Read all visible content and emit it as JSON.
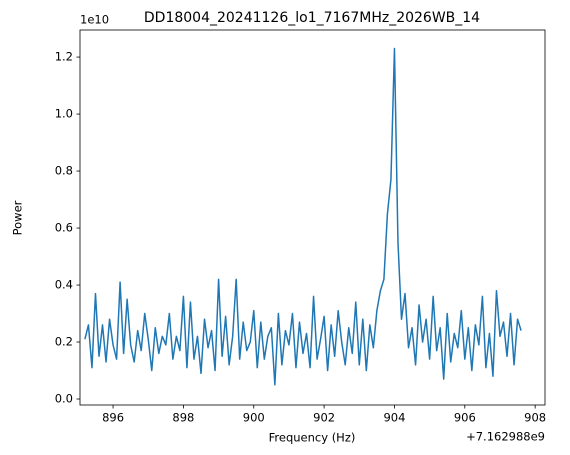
{
  "chart_data": {
    "type": "line",
    "title": "DD18004_20241126_lo1_7167MHz_2026WB_14",
    "x_label": "Frequency (Hz)",
    "y_label": "Power",
    "x_offset_label": "+7.162988e9",
    "y_offset_label": "1e10",
    "x": [
      895.2,
      895.3,
      895.4,
      895.5,
      895.6,
      895.7,
      895.8,
      895.9,
      896.0,
      896.1,
      896.2,
      896.3,
      896.4,
      896.5,
      896.6,
      896.7,
      896.8,
      896.9,
      897.0,
      897.1,
      897.2,
      897.3,
      897.4,
      897.5,
      897.6,
      897.7,
      897.8,
      897.9,
      898.0,
      898.1,
      898.2,
      898.3,
      898.4,
      898.5,
      898.6,
      898.7,
      898.8,
      898.9,
      899.0,
      899.1,
      899.2,
      899.3,
      899.4,
      899.5,
      899.6,
      899.7,
      899.8,
      899.9,
      900.0,
      900.1,
      900.2,
      900.3,
      900.4,
      900.5,
      900.6,
      900.7,
      900.8,
      900.9,
      901.0,
      901.1,
      901.2,
      901.3,
      901.4,
      901.5,
      901.6,
      901.7,
      901.8,
      901.9,
      902.0,
      902.1,
      902.2,
      902.3,
      902.4,
      902.5,
      902.6,
      902.7,
      902.8,
      902.9,
      903.0,
      903.1,
      903.2,
      903.3,
      903.4,
      903.5,
      903.6,
      903.7,
      903.8,
      903.9,
      904.0,
      904.1,
      904.2,
      904.3,
      904.4,
      904.5,
      904.6,
      904.7,
      904.8,
      904.9,
      905.0,
      905.1,
      905.2,
      905.3,
      905.4,
      905.5,
      905.6,
      905.7,
      905.8,
      905.9,
      906.0,
      906.1,
      906.2,
      906.3,
      906.4,
      906.5,
      906.6,
      906.7,
      906.8,
      906.9,
      907.0,
      907.1,
      907.2,
      907.3,
      907.4,
      907.5,
      907.6
    ],
    "series": [
      {
        "name": "Power",
        "color": "#1f77b4",
        "values": [
          0.21,
          0.26,
          0.11,
          0.37,
          0.15,
          0.26,
          0.13,
          0.28,
          0.19,
          0.14,
          0.41,
          0.16,
          0.35,
          0.19,
          0.13,
          0.24,
          0.17,
          0.3,
          0.21,
          0.1,
          0.25,
          0.16,
          0.22,
          0.19,
          0.3,
          0.14,
          0.22,
          0.17,
          0.36,
          0.11,
          0.34,
          0.14,
          0.22,
          0.09,
          0.28,
          0.18,
          0.24,
          0.1,
          0.42,
          0.15,
          0.29,
          0.12,
          0.22,
          0.42,
          0.14,
          0.27,
          0.17,
          0.2,
          0.31,
          0.11,
          0.27,
          0.14,
          0.22,
          0.25,
          0.05,
          0.3,
          0.12,
          0.24,
          0.19,
          0.3,
          0.11,
          0.27,
          0.16,
          0.23,
          0.11,
          0.36,
          0.14,
          0.21,
          0.29,
          0.1,
          0.26,
          0.15,
          0.31,
          0.2,
          0.12,
          0.25,
          0.16,
          0.34,
          0.12,
          0.28,
          0.1,
          0.26,
          0.18,
          0.31,
          0.38,
          0.42,
          0.65,
          0.77,
          1.23,
          0.55,
          0.28,
          0.37,
          0.18,
          0.25,
          0.12,
          0.33,
          0.2,
          0.28,
          0.14,
          0.36,
          0.17,
          0.25,
          0.07,
          0.3,
          0.13,
          0.23,
          0.18,
          0.31,
          0.14,
          0.25,
          0.1,
          0.26,
          0.19,
          0.36,
          0.11,
          0.23,
          0.08,
          0.38,
          0.22,
          0.27,
          0.15,
          0.3,
          0.12,
          0.28,
          0.24
        ]
      }
    ],
    "xlim": [
      895.06,
      908.28
    ],
    "xticks": [
      896,
      898,
      900,
      902,
      904,
      906,
      908
    ],
    "ylim": [
      -0.021,
      1.295
    ],
    "yticks": [
      {
        "value": 0.0,
        "label": "0.0"
      },
      0.2,
      0.4,
      0.6,
      0.8,
      {
        "value": 1.0,
        "label": "1.0"
      },
      1.2
    ],
    "grid": false
  }
}
